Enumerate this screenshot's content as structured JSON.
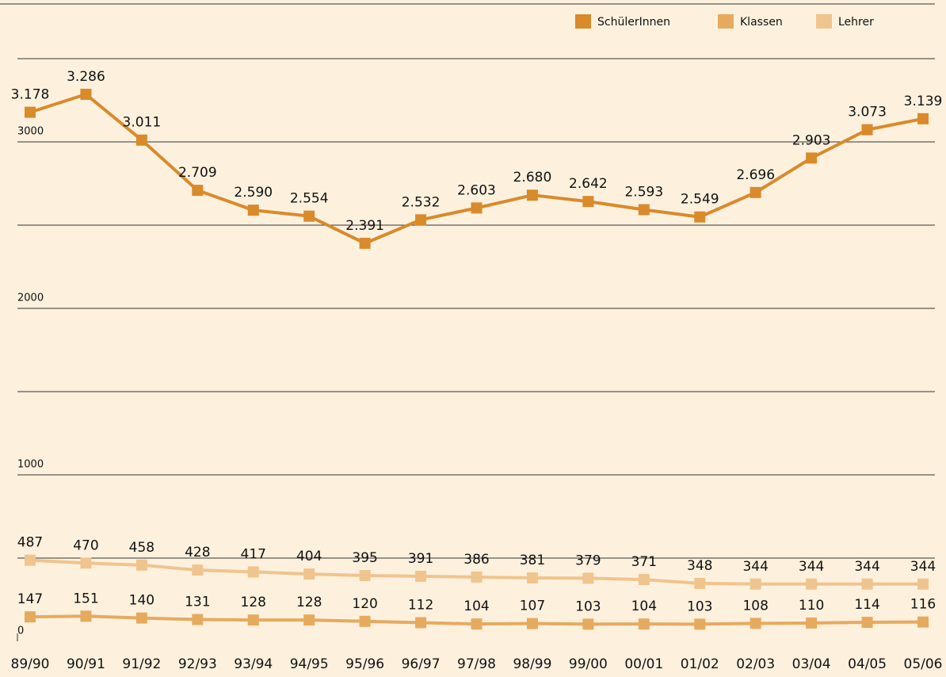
{
  "chart_data": {
    "type": "line",
    "categories": [
      "89/90",
      "90/91",
      "91/92",
      "92/93",
      "93/94",
      "94/95",
      "95/96",
      "96/97",
      "97/98",
      "98/99",
      "99/00",
      "00/01",
      "01/02",
      "02/03",
      "03/04",
      "04/05",
      "05/06"
    ],
    "series": [
      {
        "name": "SchülerInnen",
        "color": "#d98a2b",
        "values": [
          3178,
          3286,
          3011,
          2709,
          2590,
          2554,
          2391,
          2532,
          2603,
          2680,
          2642,
          2593,
          2549,
          2696,
          2903,
          3073,
          3139
        ],
        "value_labels": [
          "3.178",
          "3.286",
          "3.011",
          "2.709",
          "2.590",
          "2.554",
          "2.391",
          "2.532",
          "2.603",
          "2.680",
          "2.642",
          "2.593",
          "2.549",
          "2.696",
          "2.903",
          "3.073",
          "3.139"
        ]
      },
      {
        "name": "Klassen",
        "color": "#e6aa5f",
        "values": [
          147,
          151,
          140,
          131,
          128,
          128,
          120,
          112,
          104,
          107,
          103,
          104,
          103,
          108,
          110,
          114,
          116
        ]
      },
      {
        "name": "Lehrer",
        "color": "#f0c48e",
        "values": [
          487,
          470,
          458,
          428,
          417,
          404,
          395,
          391,
          386,
          381,
          379,
          371,
          348,
          344,
          344,
          344,
          344
        ]
      }
    ],
    "ylim": [
      0,
      3500
    ],
    "yticks": [
      0,
      1000,
      2000,
      3000
    ],
    "yminor": [
      500,
      1500,
      2500,
      3500
    ],
    "grid": true,
    "legend": "top-right"
  }
}
